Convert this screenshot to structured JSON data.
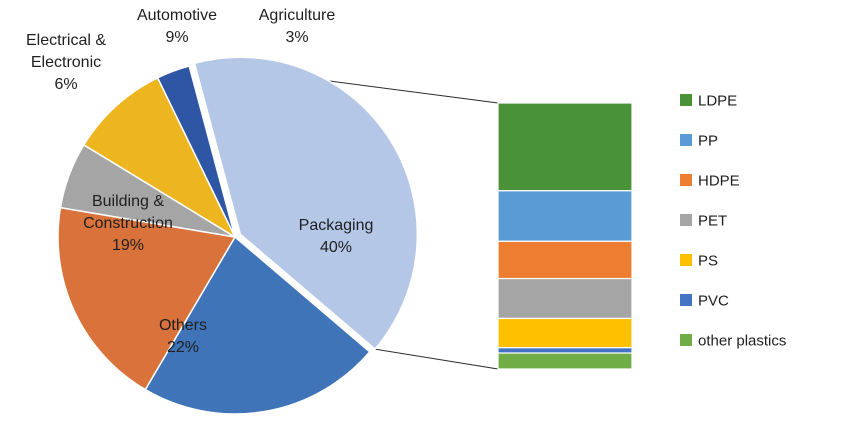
{
  "chart_data": {
    "type": "pie",
    "categories": [
      "Packaging",
      "Others",
      "Building & Construction",
      "Electrical & Electronic",
      "Automotive",
      "Agriculture"
    ],
    "label_lines": [
      [
        "Packaging",
        "40%"
      ],
      [
        "Others",
        "22%"
      ],
      [
        "Building &",
        "Construction",
        "19%"
      ],
      [
        "Electrical &",
        "Electronic",
        "6%"
      ],
      [
        "Automotive",
        "9%"
      ],
      [
        "Agriculture",
        "3%"
      ]
    ],
    "values": [
      40,
      22,
      19,
      6,
      9,
      3
    ],
    "colors": [
      "#b4c7e7",
      "#3f74b8",
      "#d9733b",
      "#a5a5a5",
      "#edb51f",
      "#2e56a4"
    ],
    "exploded_category": "Packaging",
    "breakdown": {
      "type": "stacked-bar",
      "legend_position": "right",
      "segments": [
        {
          "name": "LDPE",
          "value": 33,
          "color": "#4a9238"
        },
        {
          "name": "PP",
          "value": 19,
          "color": "#5b9bd5"
        },
        {
          "name": "HDPE",
          "value": 14,
          "color": "#ed7d31"
        },
        {
          "name": "PET",
          "value": 15,
          "color": "#a5a5a5"
        },
        {
          "name": "PS",
          "value": 11,
          "color": "#ffc000"
        },
        {
          "name": "PVC",
          "value": 2,
          "color": "#4472c4"
        },
        {
          "name": "other plastics",
          "value": 6,
          "color": "#70ad47"
        }
      ]
    }
  }
}
